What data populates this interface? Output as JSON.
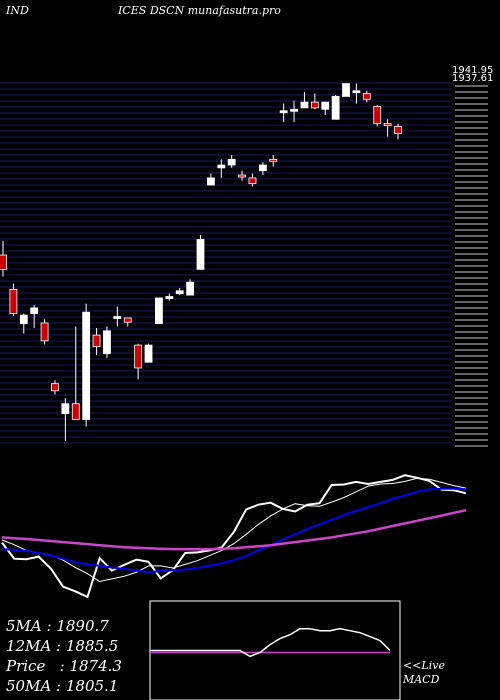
{
  "header": {
    "left": "IND",
    "right": "ICES DSCN munafasutra.pro"
  },
  "price_panel": {
    "top_labels": [
      "1941.95",
      "1937.61"
    ]
  },
  "stats": [
    {
      "label": "5MA : 1890.7"
    },
    {
      "label": "12MA : 1885.5"
    },
    {
      "label": "Price   : 1874.3"
    },
    {
      "label": "50MA : 1805.1"
    }
  ],
  "macd": {
    "line1": "<<Live",
    "line2": "MACD"
  },
  "colors": {
    "bg": "#000000",
    "grid": "#1a1a66",
    "up": "#ffffff",
    "down": "#cc0000",
    "ma_blue": "#0000ee",
    "ma_magenta": "#cc44cc",
    "ma_white": "#ffffff"
  },
  "chart_data": {
    "type": "candlestick",
    "candles": [
      {
        "o": 1700,
        "h": 1720,
        "l": 1670,
        "c": 1680
      },
      {
        "o": 1652,
        "h": 1660,
        "l": 1615,
        "c": 1618
      },
      {
        "o": 1604,
        "h": 1618,
        "l": 1590,
        "c": 1616
      },
      {
        "o": 1618,
        "h": 1630,
        "l": 1598,
        "c": 1626
      },
      {
        "o": 1605,
        "h": 1610,
        "l": 1575,
        "c": 1580
      },
      {
        "o": 1520,
        "h": 1525,
        "l": 1505,
        "c": 1510
      },
      {
        "o": 1478,
        "h": 1500,
        "l": 1440,
        "c": 1492
      },
      {
        "o": 1492,
        "h": 1600,
        "l": 1470,
        "c": 1470
      },
      {
        "o": 1470,
        "h": 1632,
        "l": 1460,
        "c": 1620
      },
      {
        "o": 1588,
        "h": 1598,
        "l": 1560,
        "c": 1572
      },
      {
        "o": 1562,
        "h": 1600,
        "l": 1556,
        "c": 1594
      },
      {
        "o": 1612,
        "h": 1628,
        "l": 1600,
        "c": 1614
      },
      {
        "o": 1612,
        "h": 1610,
        "l": 1600,
        "c": 1606
      },
      {
        "o": 1574,
        "h": 1576,
        "l": 1526,
        "c": 1542
      },
      {
        "o": 1550,
        "h": 1576,
        "l": 1550,
        "c": 1574
      },
      {
        "o": 1604,
        "h": 1640,
        "l": 1604,
        "c": 1640
      },
      {
        "o": 1640,
        "h": 1646,
        "l": 1636,
        "c": 1642
      },
      {
        "o": 1646,
        "h": 1654,
        "l": 1644,
        "c": 1650
      },
      {
        "o": 1644,
        "h": 1666,
        "l": 1644,
        "c": 1662
      },
      {
        "o": 1680,
        "h": 1728,
        "l": 1680,
        "c": 1722
      },
      {
        "o": 1798,
        "h": 1814,
        "l": 1798,
        "c": 1808
      },
      {
        "o": 1822,
        "h": 1834,
        "l": 1808,
        "c": 1826
      },
      {
        "o": 1826,
        "h": 1840,
        "l": 1822,
        "c": 1834
      },
      {
        "o": 1812,
        "h": 1818,
        "l": 1804,
        "c": 1810
      },
      {
        "o": 1808,
        "h": 1814,
        "l": 1796,
        "c": 1800
      },
      {
        "o": 1818,
        "h": 1830,
        "l": 1812,
        "c": 1826
      },
      {
        "o": 1834,
        "h": 1840,
        "l": 1824,
        "c": 1832
      },
      {
        "o": 1900,
        "h": 1912,
        "l": 1886,
        "c": 1902
      },
      {
        "o": 1902,
        "h": 1916,
        "l": 1886,
        "c": 1904
      },
      {
        "o": 1906,
        "h": 1928,
        "l": 1906,
        "c": 1914
      },
      {
        "o": 1914,
        "h": 1926,
        "l": 1904,
        "c": 1906
      },
      {
        "o": 1904,
        "h": 1914,
        "l": 1896,
        "c": 1914
      },
      {
        "o": 1890,
        "h": 1924,
        "l": 1890,
        "c": 1922
      },
      {
        "o": 1922,
        "h": 1940,
        "l": 1922,
        "c": 1940
      },
      {
        "o": 1930,
        "h": 1940,
        "l": 1912,
        "c": 1930
      },
      {
        "o": 1926,
        "h": 1930,
        "l": 1914,
        "c": 1918
      },
      {
        "o": 1908,
        "h": 1910,
        "l": 1880,
        "c": 1884
      },
      {
        "o": 1884,
        "h": 1890,
        "l": 1866,
        "c": 1882
      },
      {
        "o": 1880,
        "h": 1884,
        "l": 1862,
        "c": 1870
      }
    ],
    "ma_lines": [
      {
        "name": "5MA",
        "values": [
          1690,
          1672,
          1650,
          1640,
          1632,
          1612,
          1584,
          1560,
          1530,
          1540,
          1550,
          1565,
          1590,
          1590,
          1582,
          1596,
          1610,
          1630,
          1650,
          1676,
          1712,
          1750,
          1782,
          1810,
          1830,
          1822,
          1820,
          1836,
          1854,
          1876,
          1898,
          1906,
          1908,
          1916,
          1928,
          1924,
          1912,
          1900,
          1890
        ]
      },
      {
        "name": "12MA",
        "values": [
          1655,
          1652,
          1648,
          1640,
          1630,
          1618,
          1604,
          1596,
          1590,
          1584,
          1578,
          1572,
          1566,
          1570,
          1574,
          1576,
          1582,
          1590,
          1600,
          1612,
          1628,
          1650,
          1670,
          1692,
          1712,
          1732,
          1750,
          1768,
          1786,
          1802,
          1816,
          1832,
          1848,
          1862,
          1876,
          1886,
          1888,
          1888,
          1886
        ]
      },
      {
        "name": "50MA",
        "values": [
          1700,
          1697,
          1694,
          1690,
          1686,
          1682,
          1678,
          1674,
          1670,
          1666,
          1662,
          1660,
          1658,
          1656,
          1655,
          1654,
          1654,
          1655,
          1656,
          1658,
          1662,
          1666,
          1670,
          1676,
          1682,
          1688,
          1694,
          1700,
          1708,
          1716,
          1724,
          1734,
          1744,
          1754,
          1764,
          1774,
          1784,
          1795,
          1805
        ]
      }
    ],
    "macd_lines": [
      {
        "name": "macd",
        "values": [
          0.35,
          0.3,
          0.22,
          0.12,
          0.04,
          -0.06,
          -0.16,
          -0.28,
          -0.34,
          -0.28,
          -0.2,
          -0.14,
          -0.2,
          -0.24,
          -0.16,
          -0.08,
          0.0,
          0.08,
          0.16,
          0.24,
          0.34,
          0.42,
          0.48,
          0.52,
          0.56,
          0.6,
          0.64,
          0.68,
          0.72,
          0.76,
          0.8,
          0.84,
          0.86,
          0.88,
          0.86,
          0.82,
          0.78,
          0.75,
          0.72
        ]
      }
    ],
    "macd_signal_lines": [
      {
        "name": "signal",
        "values": [
          0.3,
          0.28,
          0.25,
          0.2,
          0.14,
          0.08,
          0.0,
          -0.08,
          -0.14,
          -0.16,
          -0.16,
          -0.15,
          -0.16,
          -0.18,
          -0.16,
          -0.12,
          -0.08,
          -0.02,
          0.04,
          0.1,
          0.18,
          0.26,
          0.33,
          0.39,
          0.45,
          0.5,
          0.55,
          0.6,
          0.64,
          0.68,
          0.72,
          0.76,
          0.79,
          0.82,
          0.83,
          0.83,
          0.81,
          0.79,
          0.76
        ]
      }
    ],
    "live_macd": {
      "values": [
        0.5,
        0.5,
        0.5,
        0.5,
        0.5,
        0.5,
        0.5,
        0.5,
        0.5,
        0.5,
        0.44,
        0.48,
        0.56,
        0.62,
        0.66,
        0.72,
        0.72,
        0.7,
        0.7,
        0.72,
        0.7,
        0.68,
        0.64,
        0.6,
        0.5
      ],
      "signal": [
        0.5,
        0.5,
        0.5,
        0.5,
        0.5,
        0.5,
        0.5,
        0.5,
        0.5,
        0.5,
        0.5,
        0.5,
        0.5,
        0.5,
        0.5,
        0.5,
        0.5,
        0.5,
        0.5,
        0.5,
        0.5,
        0.5,
        0.5,
        0.5,
        0.5
      ]
    }
  }
}
